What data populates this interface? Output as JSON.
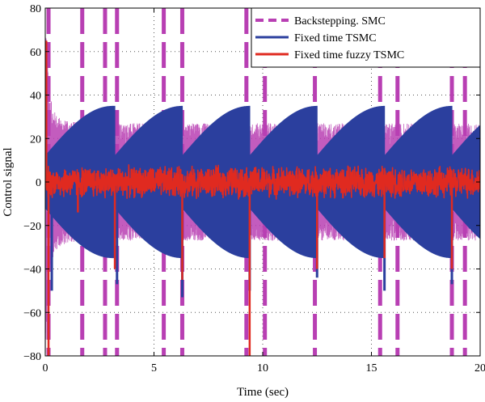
{
  "chart_data": {
    "type": "line",
    "title": "",
    "xlabel": "Time (sec)",
    "ylabel": "Control signal",
    "xlim": [
      0,
      20
    ],
    "ylim": [
      -80,
      80
    ],
    "xticks": [
      0,
      5,
      10,
      15,
      20
    ],
    "yticks": [
      -80,
      -60,
      -40,
      -20,
      0,
      20,
      40,
      60,
      80
    ],
    "grid": true,
    "legend_position": "top-right",
    "series": [
      {
        "name": "Backstepping. SMC",
        "color": "#b83fb3",
        "style": "dashed",
        "envelope": {
          "x": [
            0,
            0.2,
            0.4,
            0.6,
            0.8,
            1,
            1.5,
            2,
            3,
            4,
            5,
            6,
            8,
            10,
            12,
            14,
            16,
            18,
            20
          ],
          "upper": [
            80,
            40,
            33,
            30,
            29,
            28,
            28,
            27,
            27,
            27,
            27,
            27,
            27,
            27,
            27,
            27,
            27,
            27,
            27
          ],
          "lower": [
            -80,
            -40,
            -33,
            -30,
            -29,
            -28,
            -28,
            -27,
            -27,
            -27,
            -27,
            -27,
            -27,
            -27,
            -27,
            -27,
            -27,
            -27,
            -27
          ]
        },
        "spike_times": [
          0.15,
          1.7,
          2.75,
          3.3,
          5.45,
          6.3,
          9.25,
          10.1,
          12.4,
          15.4,
          16.2,
          18.7,
          19.3
        ],
        "approx_range": [
          -80,
          80
        ]
      },
      {
        "name": "Fixed time TSMC",
        "color": "#2b3f9e",
        "style": "solid",
        "period_sec": 3.1,
        "cycle_starts": [
          0,
          3.2,
          6.3,
          9.4,
          12.5,
          15.6,
          18.7
        ],
        "cycle_envelope_upper": [
          12,
          35
        ],
        "cycle_envelope_lower": [
          -12,
          -35
        ],
        "drop_spikes": [
          {
            "x": 0.3,
            "y": -50
          },
          {
            "x": 3.3,
            "y": -47
          },
          {
            "x": 6.3,
            "y": -53
          },
          {
            "x": 9.4,
            "y": -50
          },
          {
            "x": 12.5,
            "y": -44
          },
          {
            "x": 15.6,
            "y": -50
          },
          {
            "x": 18.7,
            "y": -47
          }
        ],
        "approx_range": [
          -53,
          35
        ]
      },
      {
        "name": "Fixed time fuzzy TSMC",
        "color": "#e02a20",
        "style": "solid",
        "mean": 0,
        "noise_amplitude": 8,
        "spikes": [
          {
            "x": 0.05,
            "y": 65
          },
          {
            "x": 0.15,
            "y": -80
          },
          {
            "x": 1.5,
            "y": -14
          },
          {
            "x": 3.2,
            "y": -40
          },
          {
            "x": 6.3,
            "y": -45
          },
          {
            "x": 9.4,
            "y": -80
          },
          {
            "x": 12.5,
            "y": -40
          },
          {
            "x": 15.6,
            "y": -35
          },
          {
            "x": 18.7,
            "y": -40
          }
        ],
        "approx_range": [
          -80,
          65
        ]
      }
    ]
  }
}
